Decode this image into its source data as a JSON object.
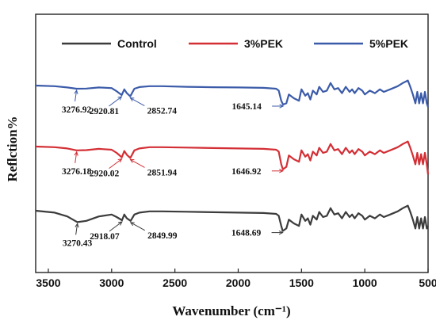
{
  "chart_data": {
    "type": "line",
    "xlabel": "Wavenumber (cm⁻¹)",
    "ylabel": "Reflction%",
    "xlim": [
      3600,
      500
    ],
    "x_ticks": [
      3500,
      3000,
      2500,
      2000,
      1500,
      1000,
      500
    ],
    "x_reversed": true,
    "y_ticks_shown": false,
    "legend_position": "top",
    "series": [
      {
        "name": "5%PEK",
        "color": "#3b5ba9",
        "x": [
          3600,
          3450,
          3350,
          3276.92,
          3200,
          3100,
          3000,
          2960,
          2920.81,
          2900,
          2880,
          2852.74,
          2820,
          2780,
          2700,
          2600,
          2400,
          2200,
          2000,
          1800,
          1700,
          1680,
          1660,
          1645.14,
          1620,
          1600,
          1560,
          1520,
          1500,
          1470,
          1450,
          1430,
          1410,
          1380,
          1360,
          1330,
          1300,
          1270,
          1240,
          1210,
          1180,
          1150,
          1120,
          1100,
          1080,
          1050,
          1020,
          1000,
          960,
          920,
          880,
          850,
          800,
          740,
          700,
          660,
          640,
          620,
          600,
          585,
          570,
          555,
          540,
          525,
          510,
          500
        ],
        "y": [
          0,
          0.5,
          1.5,
          2.5,
          2.4,
          1.5,
          2,
          4.5,
          7.5,
          3,
          6,
          8.5,
          2.5,
          1.2,
          0.5,
          0.5,
          1,
          1.3,
          1.5,
          1.8,
          2.5,
          4,
          12,
          15,
          14,
          7,
          10,
          12,
          3,
          8,
          6,
          11,
          4,
          7,
          1,
          5,
          4,
          -2,
          3,
          2,
          6,
          1,
          5,
          3,
          6,
          2,
          4,
          7,
          4,
          6,
          3,
          5,
          3,
          0.5,
          -2,
          -4,
          1,
          7,
          14,
          5,
          14,
          6,
          14,
          5,
          14,
          17
        ]
      },
      {
        "name": "3%PEK",
        "color": "#d32f35",
        "x": [
          3600,
          3450,
          3350,
          3276.18,
          3200,
          3100,
          3000,
          2960,
          2920.02,
          2900,
          2880,
          2851.94,
          2820,
          2780,
          2700,
          2600,
          2400,
          2200,
          2000,
          1800,
          1700,
          1680,
          1660,
          1646.92,
          1620,
          1600,
          1560,
          1520,
          1500,
          1470,
          1450,
          1430,
          1410,
          1380,
          1360,
          1330,
          1300,
          1270,
          1240,
          1210,
          1180,
          1150,
          1120,
          1100,
          1080,
          1050,
          1020,
          1000,
          960,
          920,
          880,
          850,
          800,
          740,
          700,
          660,
          640,
          620,
          600,
          585,
          570,
          555,
          540,
          525,
          510,
          500
        ],
        "y": [
          0,
          0.5,
          1.5,
          3,
          2.8,
          1.8,
          2.5,
          5,
          8.5,
          3.5,
          6.5,
          9,
          3,
          1.5,
          0.5,
          0.5,
          0.8,
          1.2,
          1.5,
          1.8,
          2.5,
          4,
          14,
          18,
          16,
          7,
          10,
          12,
          3,
          8,
          6,
          11,
          4,
          7,
          1,
          5,
          4,
          -2,
          3,
          2,
          6,
          1,
          5,
          3,
          6,
          2,
          4,
          7,
          4,
          6,
          3,
          5,
          3,
          0.5,
          -2,
          -4,
          1,
          7,
          14,
          5,
          14,
          6,
          14,
          5,
          14,
          22
        ]
      },
      {
        "name": "Control",
        "color": "#3c3c3c",
        "x": [
          3600,
          3450,
          3350,
          3270.43,
          3200,
          3100,
          3000,
          2960,
          2918.07,
          2900,
          2880,
          2849.99,
          2820,
          2780,
          2700,
          2600,
          2400,
          2200,
          2000,
          1800,
          1700,
          1680,
          1660,
          1648.69,
          1620,
          1600,
          1560,
          1520,
          1500,
          1470,
          1450,
          1430,
          1410,
          1380,
          1360,
          1330,
          1300,
          1270,
          1240,
          1210,
          1180,
          1150,
          1120,
          1100,
          1080,
          1050,
          1020,
          1000,
          960,
          920,
          880,
          850,
          800,
          740,
          700,
          660,
          640,
          620,
          600,
          585,
          570,
          555,
          540,
          525,
          510,
          500
        ],
        "y": [
          0,
          1.5,
          4.5,
          9,
          8,
          4.5,
          3,
          5,
          7.5,
          3,
          6,
          8,
          3,
          1.5,
          0.5,
          0.5,
          0.8,
          1.2,
          1.5,
          1.8,
          2.5,
          4,
          12,
          16,
          14,
          7,
          10,
          12,
          3,
          8,
          6,
          11,
          4,
          7,
          1,
          5,
          4,
          -2,
          3,
          2,
          6,
          1,
          5,
          3,
          6,
          2,
          4,
          7,
          4,
          6,
          3,
          5,
          3,
          0.5,
          -2,
          -4,
          1,
          7,
          14,
          5,
          14,
          6,
          14,
          5,
          14,
          12
        ]
      }
    ],
    "annotations": [
      {
        "series": "5%PEK",
        "label": "3276.92",
        "x": 3276.92,
        "text_side": "below"
      },
      {
        "series": "5%PEK",
        "label": "2920.81",
        "x": 2920.81,
        "text_side": "below-left"
      },
      {
        "series": "5%PEK",
        "label": "2852.74",
        "x": 2852.74,
        "text_side": "below-right"
      },
      {
        "series": "5%PEK",
        "label": "1645.14",
        "x": 1645.14,
        "text_side": "left"
      },
      {
        "series": "3%PEK",
        "label": "3276.18",
        "x": 3276.18,
        "text_side": "below"
      },
      {
        "series": "3%PEK",
        "label": "2920.02",
        "x": 2920.02,
        "text_side": "below-left"
      },
      {
        "series": "3%PEK",
        "label": "2851.94",
        "x": 2851.94,
        "text_side": "below-right"
      },
      {
        "series": "3%PEK",
        "label": "1646.92",
        "x": 1646.92,
        "text_side": "left"
      },
      {
        "series": "Control",
        "label": "3270.43",
        "x": 3270.43,
        "text_side": "below"
      },
      {
        "series": "Control",
        "label": "2918.07",
        "x": 2918.07,
        "text_side": "below-left"
      },
      {
        "series": "Control",
        "label": "2849.99",
        "x": 2849.99,
        "text_side": "below-right"
      },
      {
        "series": "Control",
        "label": "1648.69",
        "x": 1648.69,
        "text_side": "left"
      }
    ]
  }
}
